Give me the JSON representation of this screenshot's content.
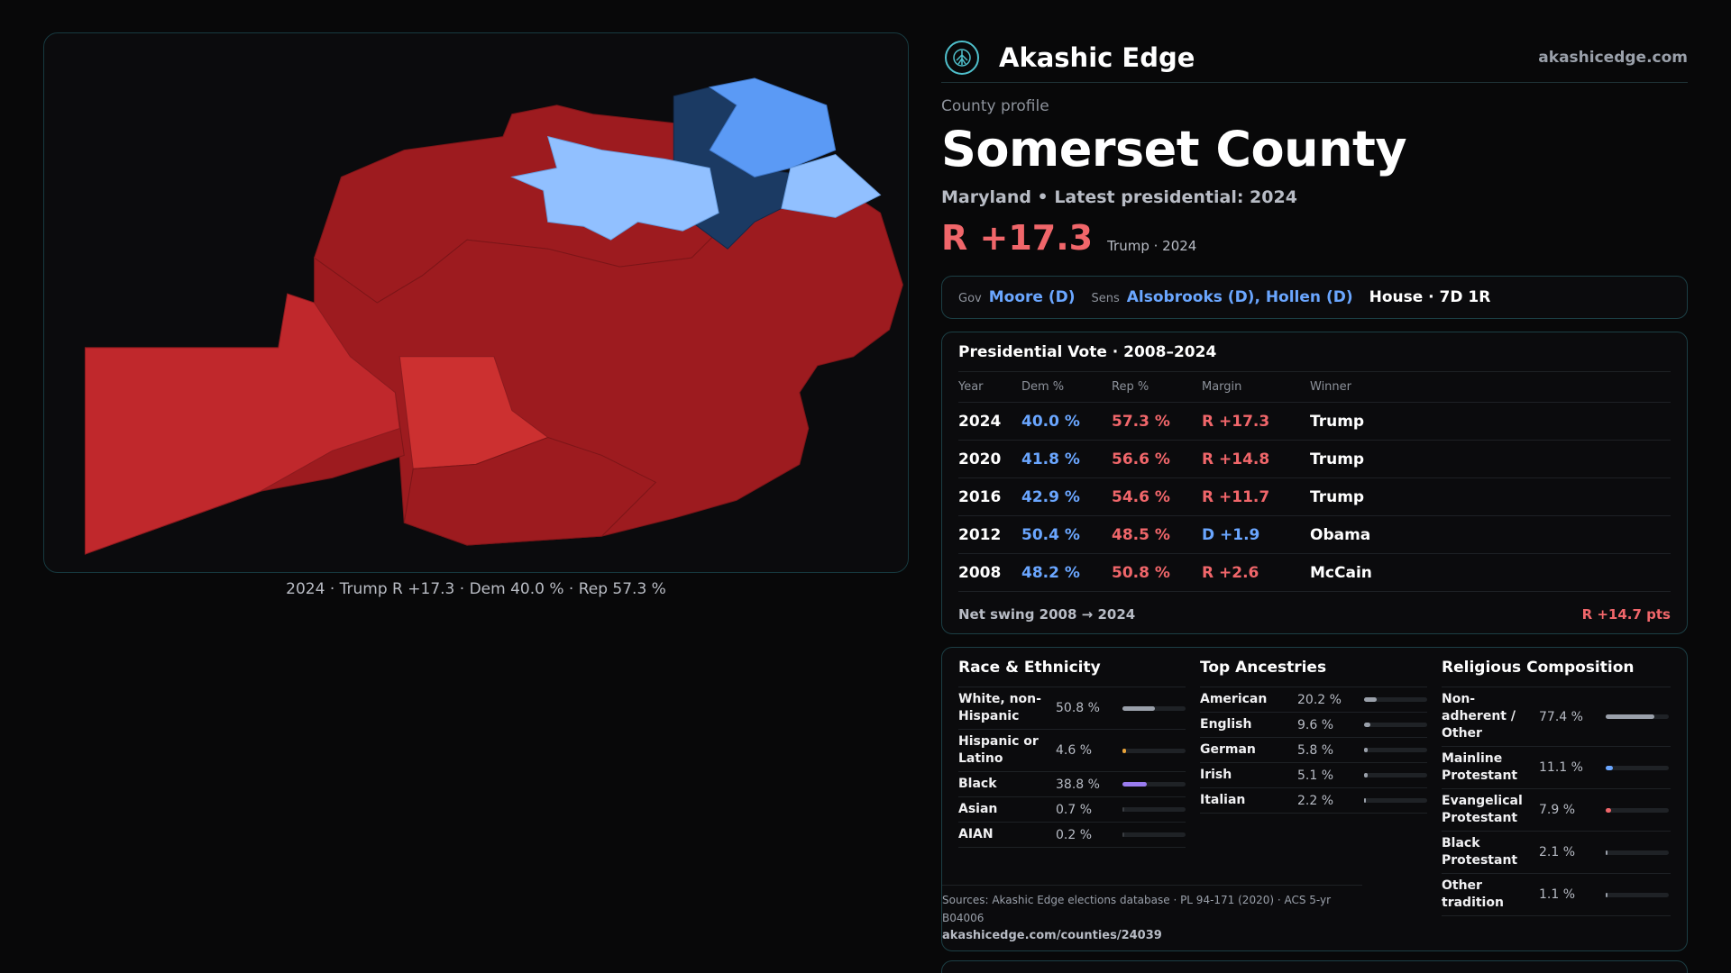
{
  "brand": {
    "name": "Akashic Edge",
    "site": "akashicedge.com",
    "logo_icon": "tree-of-life-icon"
  },
  "profile": {
    "kicker": "County profile",
    "county": "Somerset County",
    "subtitle": "Maryland • Latest presidential: 2024",
    "headline_margin": "R +17.3",
    "headline_winner": "Trump · 2024"
  },
  "officials": {
    "gov_label": "Gov",
    "gov": "Moore (D)",
    "sens_label": "Sens",
    "sens": "Alsobrooks (D), Hollen (D)",
    "house": "House · 7D 1R"
  },
  "presidential": {
    "title": "Presidential Vote · 2008–2024",
    "headers": {
      "year": "Year",
      "dem": "Dem %",
      "rep": "Rep %",
      "margin": "Margin",
      "winner": "Winner"
    },
    "rows": [
      {
        "year": "2024",
        "dem": "40.0 %",
        "rep": "57.3 %",
        "margin": "R +17.3",
        "party": "R",
        "winner": "Trump"
      },
      {
        "year": "2020",
        "dem": "41.8 %",
        "rep": "56.6 %",
        "margin": "R +14.8",
        "party": "R",
        "winner": "Trump"
      },
      {
        "year": "2016",
        "dem": "42.9 %",
        "rep": "54.6 %",
        "margin": "R +11.7",
        "party": "R",
        "winner": "Trump"
      },
      {
        "year": "2012",
        "dem": "50.4 %",
        "rep": "48.5 %",
        "margin": "D +1.9",
        "party": "D",
        "winner": "Obama"
      },
      {
        "year": "2008",
        "dem": "48.2 %",
        "rep": "50.8 %",
        "margin": "R +2.6",
        "party": "R",
        "winner": "McCain"
      }
    ],
    "swing_label": "Net swing 2008 → 2024",
    "swing_value": "R +14.7 pts"
  },
  "race": {
    "title": "Race & Ethnicity",
    "items": [
      {
        "label": "White, non-Hispanic",
        "value": "50.8 %",
        "fraction": 0.508,
        "color": "#9aa0aa"
      },
      {
        "label": "Hispanic or Latino",
        "value": "4.6 %",
        "fraction": 0.046,
        "color": "#e8a33a"
      },
      {
        "label": "Black",
        "value": "38.8 %",
        "fraction": 0.388,
        "color": "#9a7cf0"
      },
      {
        "label": "Asian",
        "value": "0.7 %",
        "fraction": 0.007,
        "color": "#3a3d42"
      },
      {
        "label": "AIAN",
        "value": "0.2 %",
        "fraction": 0.002,
        "color": "#3a3d42"
      }
    ]
  },
  "ancestry": {
    "title": "Top Ancestries",
    "items": [
      {
        "label": "American",
        "value": "20.2 %",
        "fraction": 0.202,
        "color": "#9aa0aa"
      },
      {
        "label": "English",
        "value": "9.6 %",
        "fraction": 0.096,
        "color": "#9aa0aa"
      },
      {
        "label": "German",
        "value": "5.8 %",
        "fraction": 0.058,
        "color": "#9aa0aa"
      },
      {
        "label": "Irish",
        "value": "5.1 %",
        "fraction": 0.051,
        "color": "#9aa0aa"
      },
      {
        "label": "Italian",
        "value": "2.2 %",
        "fraction": 0.022,
        "color": "#9aa0aa"
      }
    ]
  },
  "religion": {
    "title": "Religious Composition",
    "items": [
      {
        "label": "Non-adherent / Other",
        "value": "77.4 %",
        "fraction": 0.774,
        "color": "#9aa0aa"
      },
      {
        "label": "Mainline Protestant",
        "value": "11.1 %",
        "fraction": 0.111,
        "color": "#6aa6ff"
      },
      {
        "label": "Evangelical Protestant",
        "value": "7.9 %",
        "fraction": 0.079,
        "color": "#f0666a"
      },
      {
        "label": "Black Protestant",
        "value": "2.1 %",
        "fraction": 0.021,
        "color": "#9aa0aa"
      },
      {
        "label": "Other tradition",
        "value": "1.1 %",
        "fraction": 0.011,
        "color": "#9aa0aa"
      }
    ]
  },
  "sources": {
    "text": "Sources: Akashic Edge elections database · PL 94-171 (2020) · ACS 5-yr B04006",
    "link": "akashicedge.com/counties/24039"
  },
  "map": {
    "caption": "2024 · Trump R +17.3 · Dem 40.0 % · Rep 57.3 %",
    "colors": {
      "rep_strong": "#9d1b1f",
      "rep_lean": "#c0282c",
      "rep_mid": "#cc3030",
      "dem_strong": "#1b3a63",
      "dem_mid": "#5b9af5",
      "dem_light": "#91c0ff"
    }
  },
  "colors": {
    "dem": "#6aa6ff",
    "rep": "#f0666a",
    "accent": "#4fc0cc"
  }
}
